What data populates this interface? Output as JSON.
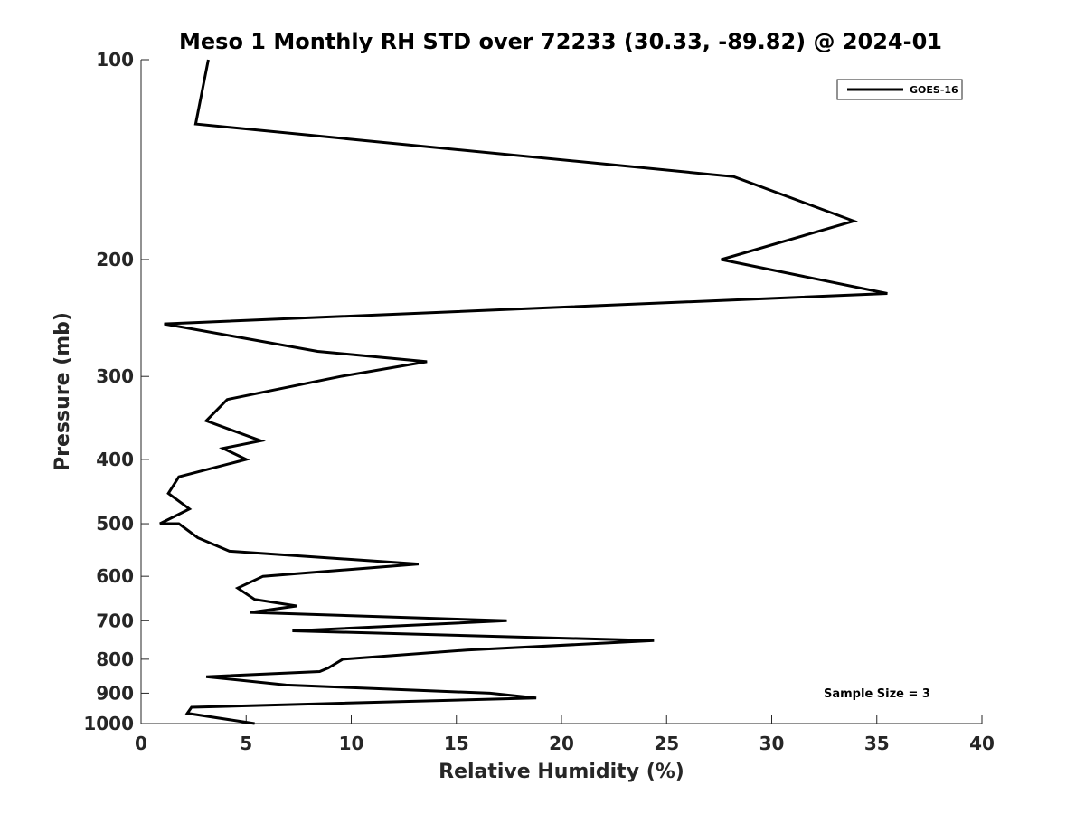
{
  "chart_data": {
    "type": "line",
    "title": "Meso 1 Monthly RH STD over 72233 (30.33, -89.82) @ 2024-01",
    "xlabel": "Relative Humidity (%)",
    "ylabel": "Pressure (mb)",
    "xlim": [
      0,
      40
    ],
    "ylim": [
      100,
      1000
    ],
    "y_scale": "log",
    "y_reversed": true,
    "grid": false,
    "xticks": [
      0,
      5,
      10,
      15,
      20,
      25,
      30,
      35,
      40
    ],
    "yticks": [
      100,
      200,
      300,
      400,
      500,
      600,
      700,
      800,
      900,
      1000
    ],
    "legend": {
      "position": "top-right",
      "entries": [
        "GOES-16"
      ]
    },
    "annotation": "Sample Size = 3",
    "series": [
      {
        "name": "GOES-16",
        "color": "#000000",
        "points": [
          [
            3.2,
            100
          ],
          [
            2.6,
            125
          ],
          [
            28.2,
            150
          ],
          [
            33.9,
            175
          ],
          [
            27.6,
            200
          ],
          [
            35.5,
            225
          ],
          [
            1.1,
            250
          ],
          [
            8.4,
            275
          ],
          [
            13.6,
            285
          ],
          [
            9.5,
            300
          ],
          [
            4.1,
            325
          ],
          [
            3.1,
            350
          ],
          [
            5.7,
            375
          ],
          [
            3.9,
            385
          ],
          [
            5.0,
            400
          ],
          [
            1.8,
            425
          ],
          [
            1.3,
            450
          ],
          [
            2.3,
            475
          ],
          [
            0.9,
            500
          ],
          [
            1.8,
            500
          ],
          [
            2.7,
            525
          ],
          [
            4.2,
            550
          ],
          [
            13.2,
            575
          ],
          [
            5.8,
            600
          ],
          [
            4.6,
            625
          ],
          [
            5.4,
            650
          ],
          [
            7.4,
            665
          ],
          [
            5.2,
            680
          ],
          [
            17.4,
            700
          ],
          [
            7.2,
            725
          ],
          [
            24.4,
            750
          ],
          [
            15.5,
            775
          ],
          [
            9.6,
            800
          ],
          [
            8.9,
            825
          ],
          [
            8.5,
            835
          ],
          [
            3.1,
            850
          ],
          [
            6.9,
            875
          ],
          [
            16.6,
            900
          ],
          [
            18.8,
            915
          ],
          [
            2.4,
            945
          ],
          [
            2.2,
            965
          ],
          [
            5.4,
            1000
          ]
        ]
      }
    ]
  }
}
